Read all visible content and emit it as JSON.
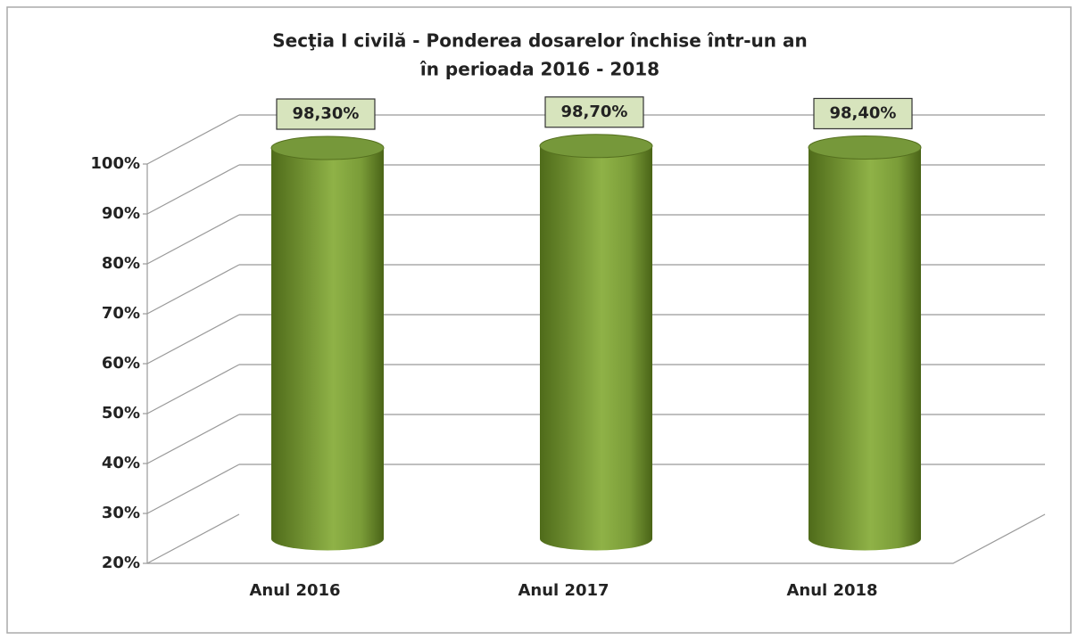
{
  "chart_data": {
    "type": "bar3d",
    "title": [
      "Secţia I civilă - Ponderea dosarelor închise într-un an",
      "în perioada 2016 - 2018"
    ],
    "categories": [
      "Anul 2016",
      "Anul 2017",
      "Anul 2018"
    ],
    "values": [
      98.3,
      98.7,
      98.4
    ],
    "value_labels": [
      "98,30%",
      "98,70%",
      "98,40%"
    ],
    "color": "#76983a",
    "ylim": [
      20,
      100
    ],
    "yticks": [
      {
        "value": 20,
        "label": "20%"
      },
      {
        "value": 30,
        "label": "30%"
      },
      {
        "value": 40,
        "label": "40%"
      },
      {
        "value": 50,
        "label": "50%"
      },
      {
        "value": 60,
        "label": "60%"
      },
      {
        "value": 70,
        "label": "70%"
      },
      {
        "value": 80,
        "label": "80%"
      },
      {
        "value": 90,
        "label": "90%"
      },
      {
        "value": 100,
        "label": "100%"
      }
    ],
    "grid": true
  }
}
